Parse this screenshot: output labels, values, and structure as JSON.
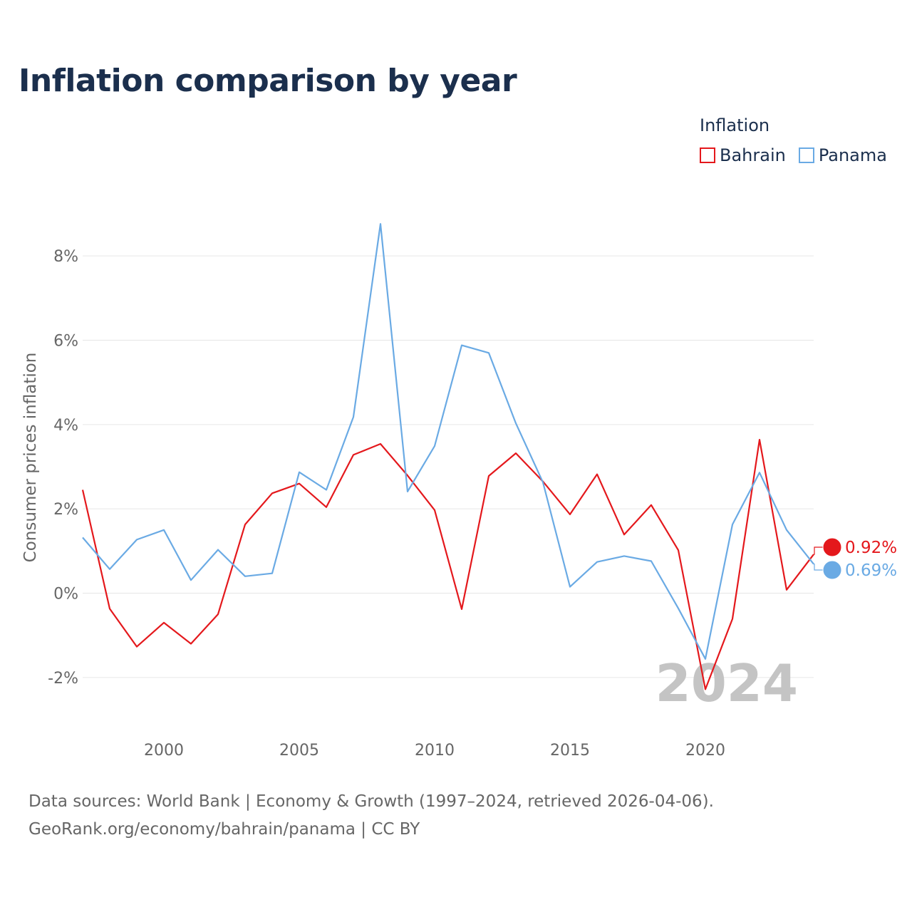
{
  "title": "Inflation comparison by year",
  "legend": {
    "title": "Inflation",
    "items": [
      {
        "label": "Bahrain",
        "color": "#e4181c"
      },
      {
        "label": "Panama",
        "color": "#6aaae4"
      }
    ]
  },
  "year_watermark": "2024",
  "source": {
    "line1": "Data sources: World Bank | Economy & Growth (1997–2024, retrieved 2026-04-06).",
    "line2": "GeoRank.org/economy/bahrain/panama | CC BY"
  },
  "chart_data": {
    "type": "line",
    "title": "Inflation comparison by year",
    "xlabel": "",
    "ylabel": "Consumer prices inflation",
    "xlim": [
      1997,
      2024
    ],
    "ylim": [
      -3,
      9
    ],
    "x_ticks": [
      2000,
      2005,
      2010,
      2015,
      2020
    ],
    "y_ticks": [
      -2,
      0,
      2,
      4,
      6,
      8
    ],
    "y_tick_labels": [
      "-2%",
      "0%",
      "2%",
      "4%",
      "6%",
      "8%"
    ],
    "grid": true,
    "legend_position": "top-right",
    "x": [
      1997,
      1998,
      1999,
      2000,
      2001,
      2002,
      2003,
      2004,
      2005,
      2006,
      2007,
      2008,
      2009,
      2010,
      2011,
      2012,
      2013,
      2014,
      2015,
      2016,
      2017,
      2018,
      2019,
      2020,
      2021,
      2022,
      2023,
      2024
    ],
    "series": [
      {
        "name": "Bahrain",
        "color": "#e4181c",
        "end_label": "0.92%",
        "values": [
          2.45,
          -0.37,
          -1.27,
          -0.7,
          -1.2,
          -0.5,
          1.63,
          2.37,
          2.6,
          2.04,
          3.28,
          3.54,
          2.79,
          1.97,
          -0.38,
          2.78,
          3.32,
          2.65,
          1.87,
          2.82,
          1.39,
          2.09,
          1.02,
          -2.28,
          -0.61,
          3.64,
          0.08,
          0.92
        ]
      },
      {
        "name": "Panama",
        "color": "#6aaae4",
        "end_label": "0.69%",
        "values": [
          1.32,
          0.57,
          1.27,
          1.5,
          0.31,
          1.03,
          0.4,
          0.47,
          2.87,
          2.45,
          4.18,
          8.76,
          2.41,
          3.49,
          5.88,
          5.7,
          4.03,
          2.63,
          0.15,
          0.74,
          0.88,
          0.76,
          -0.36,
          -1.56,
          1.63,
          2.86,
          1.5,
          0.69
        ]
      }
    ]
  }
}
